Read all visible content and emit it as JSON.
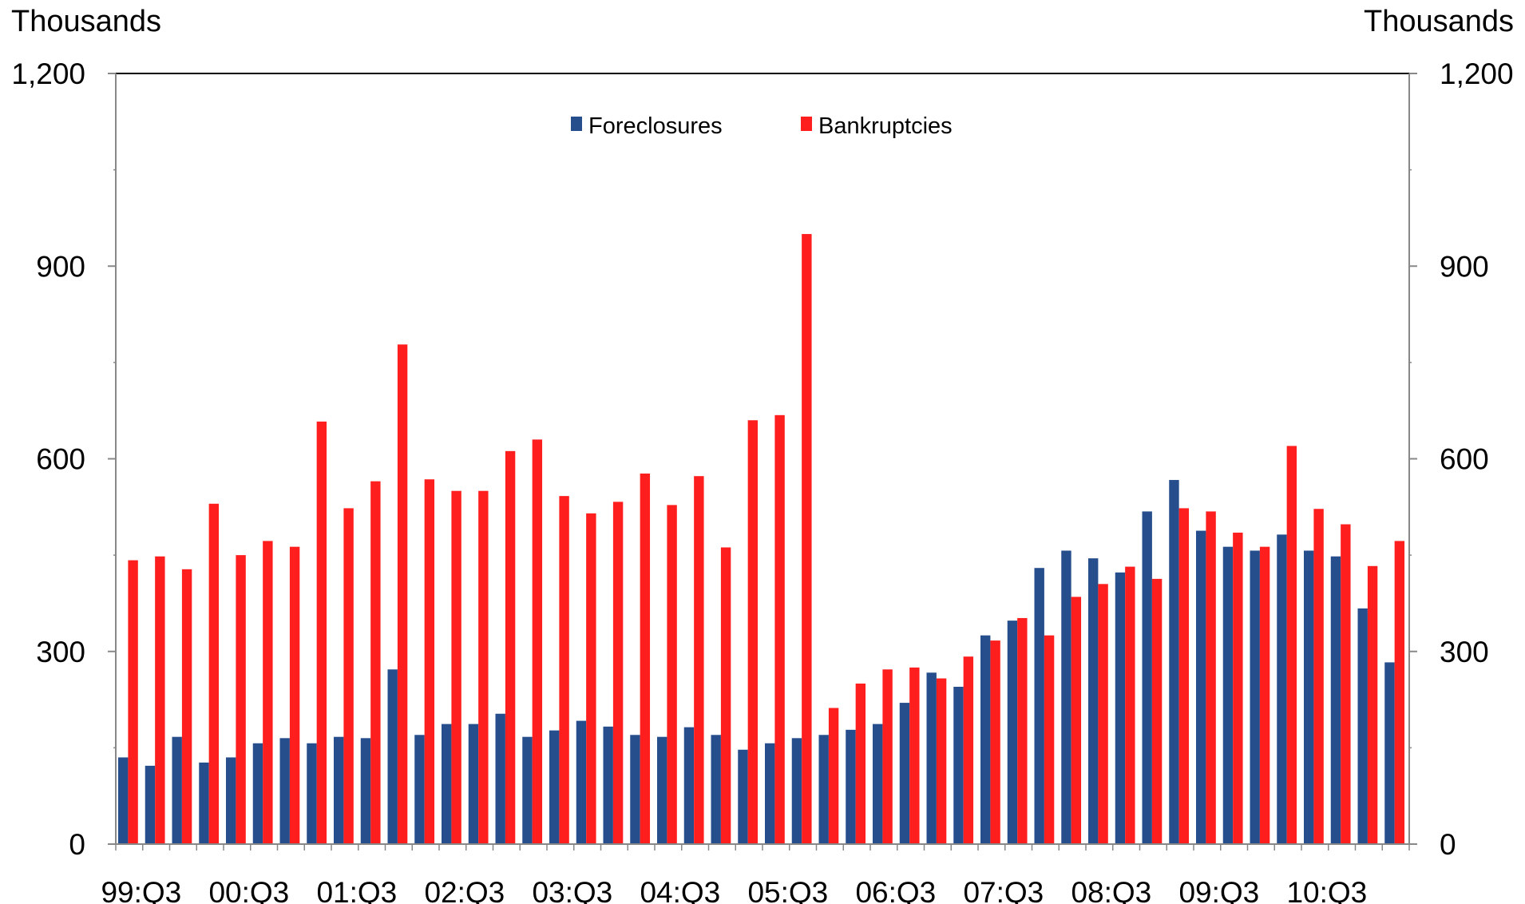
{
  "chart_data": {
    "type": "bar",
    "left_axis_unit": "Thousands",
    "right_axis_unit": "Thousands",
    "ylim": [
      0,
      1200
    ],
    "yticks": [
      0,
      300,
      600,
      900,
      1200
    ],
    "ytick_labels": [
      "0",
      "300",
      "600",
      "900",
      "1,200"
    ],
    "xtick_labels": [
      "99:Q3",
      "00:Q3",
      "01:Q3",
      "02:Q3",
      "03:Q3",
      "04:Q3",
      "05:Q3",
      "06:Q3",
      "07:Q3",
      "08:Q3",
      "09:Q3",
      "10:Q3"
    ],
    "xtick_every": 4,
    "legend_position": "top-center",
    "grid": false,
    "series": [
      {
        "name": "Foreclosures",
        "color": "#264d8c",
        "values": [
          135,
          122,
          167,
          127,
          135,
          157,
          165,
          157,
          167,
          165,
          272,
          170,
          187,
          187,
          203,
          167,
          177,
          192,
          183,
          170,
          167,
          182,
          170,
          147,
          157,
          165,
          170,
          178,
          187,
          220,
          267,
          245,
          325,
          348,
          430,
          457,
          445,
          423,
          518,
          567,
          488,
          463,
          457,
          482,
          457,
          448,
          367,
          283
        ]
      },
      {
        "name": "Bankruptcies",
        "color": "#ff1e1e",
        "values": [
          442,
          448,
          428,
          530,
          450,
          472,
          463,
          658,
          523,
          565,
          778,
          568,
          550,
          550,
          612,
          630,
          542,
          515,
          533,
          577,
          528,
          573,
          462,
          660,
          668,
          950,
          212,
          250,
          272,
          275,
          258,
          292,
          317,
          352,
          325,
          385,
          405,
          432,
          413,
          523,
          518,
          485,
          463,
          620,
          522,
          498,
          433,
          472
        ]
      }
    ]
  }
}
